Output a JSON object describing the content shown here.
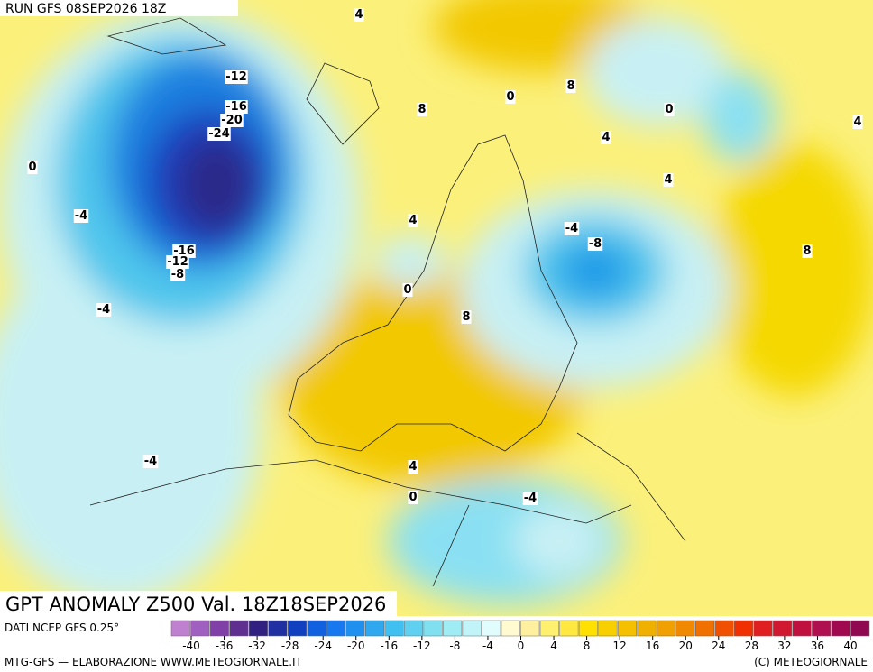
{
  "header": {
    "run": "RUN GFS 08SEP2026 18Z"
  },
  "map": {
    "contour_labels": [
      4,
      -12,
      8,
      0,
      8,
      0,
      -16,
      -20,
      -24,
      4,
      4,
      0,
      4,
      -4,
      4,
      -4,
      -8,
      -16,
      -12,
      -8,
      8,
      0,
      -4,
      8,
      -4,
      4,
      0,
      -4
    ]
  },
  "footer": {
    "title": "GPT ANOMALY Z500 Val. 18Z18SEP2026",
    "source": "DATI NCEP GFS 0.25°",
    "credit": "MTG-GFS — ELABORAZIONE WWW.METEOGIORNALE.IT",
    "copyright": "(C) METEOGIORNALE"
  },
  "scale": {
    "ticks": [
      -40,
      -36,
      -32,
      -28,
      -24,
      -20,
      -16,
      -12,
      -8,
      -4,
      0,
      4,
      8,
      12,
      16,
      20,
      24,
      28,
      32,
      36,
      40
    ]
  }
}
